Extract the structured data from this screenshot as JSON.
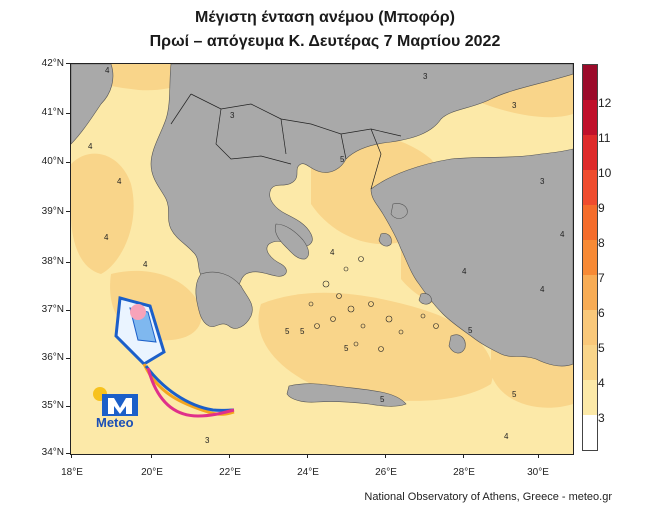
{
  "title": {
    "line1": "Μέγιστη ένταση ανέμου (Μποφόρ)",
    "line2": "Πρωί – απόγευμα Κ. Δευτέρας 7 Μαρτίου 2022"
  },
  "map": {
    "lat_labels": [
      "42°N",
      "41°N",
      "40°N",
      "39°N",
      "38°N",
      "37°N",
      "36°N",
      "35°N",
      "34°N"
    ],
    "lon_labels": [
      "18°E",
      "20°E",
      "22°E",
      "24°E",
      "26°E",
      "28°E",
      "30°E"
    ],
    "land_color": "#a9a9a9",
    "sea_color_3_4": "#fce9a8",
    "sea_color_4_5": "#f9d58a",
    "contour_labels": [
      "3",
      "3",
      "3",
      "4",
      "4",
      "4",
      "4",
      "4",
      "4",
      "4",
      "5",
      "5",
      "5",
      "5",
      "5",
      "5",
      "3",
      "3",
      "4",
      "4",
      "4",
      "5"
    ]
  },
  "colorbar": {
    "labels": [
      "12",
      "11",
      "10",
      "9",
      "8",
      "7",
      "6",
      "5",
      "4",
      "3"
    ],
    "colors": [
      "#9b0a2a",
      "#c0102a",
      "#de2a2a",
      "#ef4c2e",
      "#f46c2b",
      "#f78a35",
      "#f8ac55",
      "#f9c87a",
      "#fce9a8",
      "#ffffff"
    ]
  },
  "logo": {
    "text": "Meteo"
  },
  "credit": "National Observatory of Athens, Greece - meteo.gr"
}
